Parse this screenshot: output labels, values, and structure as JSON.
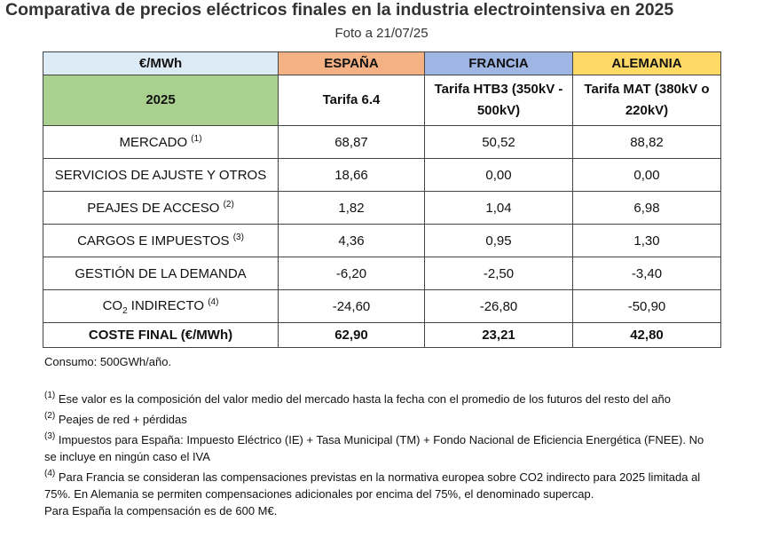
{
  "title": "Comparativa de precios eléctricos finales en la industria electrointensiva en 2025",
  "subtitle": "Foto a 21/07/25",
  "table": {
    "header": [
      "€/MWh",
      "ESPAÑA",
      "FRANCIA",
      "ALEMANIA"
    ],
    "subheader": [
      "2025",
      "Tarifa 6.4",
      "Tarifa HTB3 (350kV - 500kV)",
      "Tarifa MAT (380kV o 220kV)"
    ],
    "rows": [
      {
        "label": "MERCADO",
        "note": "(1)",
        "values": [
          "68,87",
          "50,52",
          "88,82"
        ]
      },
      {
        "label": "SERVICIOS DE AJUSTE Y OTROS",
        "values": [
          "18,66",
          "0,00",
          "0,00"
        ]
      },
      {
        "label": "PEAJES DE ACCESO",
        "note": "(2)",
        "values": [
          "1,82",
          "1,04",
          "6,98"
        ]
      },
      {
        "label": "CARGOS E IMPUESTOS",
        "note": "(3)",
        "values": [
          "4,36",
          "0,95",
          "1,30"
        ]
      },
      {
        "label": "GESTIÓN DE LA DEMANDA",
        "values": [
          "-6,20",
          "-2,50",
          "-3,40"
        ]
      },
      {
        "label": [
          "CO",
          "2",
          "INDIRECTO"
        ],
        "note": "(4)",
        "values": [
          "-24,60",
          "-26,80",
          "-50,90"
        ]
      },
      {
        "label": "COSTE FINAL (€/MWh)",
        "values": [
          "62,90",
          "23,21",
          "42,80"
        ]
      }
    ]
  },
  "consumption": "Consumo: 500GWh/año.",
  "footnotes": [
    {
      "mark": "(1)",
      "text": "Ese valor es la composición del valor medio del mercado hasta la fecha con el promedio de los futuros del resto del año"
    },
    {
      "mark": "(2)",
      "text": "Peajes de red + pérdidas"
    },
    {
      "mark": "(3)",
      "text": "Impuestos para España: Impuesto Eléctrico (IE) + Tasa Municipal (TM) + Fondo Nacional de Eficiencia Energética (FNEE). No se incluye en ningún caso el IVA"
    },
    {
      "mark": "(4)",
      "text": "Para Francia se consideran las compensaciones previstas en la normativa europea sobre CO2 indirecto para 2025 limitada al 75%. En Alemania se permiten compensaciones adicionales por encima del 75%, el denominado supercap.",
      "extra": "Para España  la compensación es de 600 M€."
    }
  ]
}
